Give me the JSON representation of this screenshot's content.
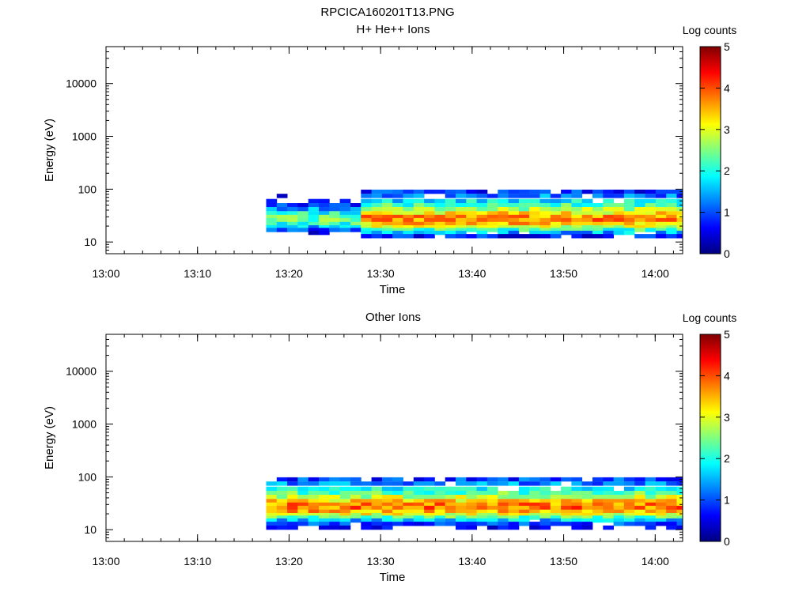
{
  "page_title": "RPCICA160201T13.PNG",
  "chart_data": [
    {
      "type": "heatmap",
      "title": "H+ He++ Ions",
      "xlabel": "Time",
      "ylabel": "Energy (eV)",
      "x_ticks": [
        "13:00",
        "13:10",
        "13:20",
        "13:30",
        "13:40",
        "13:50",
        "14:00"
      ],
      "x_range": [
        "13:00",
        "14:03"
      ],
      "y_scale": "log",
      "y_ticks": [
        "10",
        "100",
        "1000",
        "10000"
      ],
      "y_range": [
        6,
        50000
      ],
      "colorbar": {
        "label": "Log counts",
        "ticks": [
          "0",
          "1",
          "2",
          "3",
          "4",
          "5"
        ],
        "range": [
          0,
          5
        ],
        "colormap": "jet"
      },
      "data_start": "13:17.5",
      "dense_start": "13:27",
      "data_end": "14:03",
      "approx_profile_log_counts": [
        {
          "energy_eV": 90,
          "log_counts": 0.8
        },
        {
          "energy_eV": 75,
          "log_counts": 1.2
        },
        {
          "energy_eV": 60,
          "log_counts": 1.8
        },
        {
          "energy_eV": 50,
          "log_counts": 2.2
        },
        {
          "energy_eV": 42,
          "log_counts": 2.7
        },
        {
          "energy_eV": 35,
          "log_counts": 3.2
        },
        {
          "energy_eV": 30,
          "log_counts": 3.6
        },
        {
          "energy_eV": 26,
          "log_counts": 3.7
        },
        {
          "energy_eV": 22,
          "log_counts": 3.4
        },
        {
          "energy_eV": 19,
          "log_counts": 2.9
        },
        {
          "energy_eV": 17,
          "log_counts": 2.2
        },
        {
          "energy_eV": 15,
          "log_counts": 1.5
        },
        {
          "energy_eV": 13,
          "log_counts": 0.7
        }
      ]
    },
    {
      "type": "heatmap",
      "title": "Other Ions",
      "xlabel": "Time",
      "ylabel": "Energy (eV)",
      "x_ticks": [
        "13:00",
        "13:10",
        "13:20",
        "13:30",
        "13:40",
        "13:50",
        "14:00"
      ],
      "x_range": [
        "13:00",
        "14:03"
      ],
      "y_scale": "log",
      "y_ticks": [
        "10",
        "100",
        "1000",
        "10000"
      ],
      "y_range": [
        6,
        50000
      ],
      "colorbar": {
        "label": "Log counts",
        "ticks": [
          "0",
          "1",
          "2",
          "3",
          "4",
          "5"
        ],
        "range": [
          0,
          5
        ],
        "colormap": "jet"
      },
      "data_start": "13:17.5",
      "dense_start": "13:17.5",
      "data_end": "14:03",
      "approx_profile_log_counts": [
        {
          "energy_eV": 90,
          "log_counts": 0.9
        },
        {
          "energy_eV": 75,
          "log_counts": 1.3
        },
        {
          "energy_eV": 60,
          "log_counts": 1.9
        },
        {
          "energy_eV": 50,
          "log_counts": 2.3
        },
        {
          "energy_eV": 42,
          "log_counts": 2.8
        },
        {
          "energy_eV": 35,
          "log_counts": 3.3
        },
        {
          "energy_eV": 30,
          "log_counts": 3.7
        },
        {
          "energy_eV": 26,
          "log_counts": 3.8
        },
        {
          "energy_eV": 22,
          "log_counts": 3.5
        },
        {
          "energy_eV": 19,
          "log_counts": 3.0
        },
        {
          "energy_eV": 17,
          "log_counts": 2.3
        },
        {
          "energy_eV": 15,
          "log_counts": 1.6
        },
        {
          "energy_eV": 13,
          "log_counts": 0.9
        },
        {
          "energy_eV": 11,
          "log_counts": 0.4
        }
      ]
    }
  ]
}
